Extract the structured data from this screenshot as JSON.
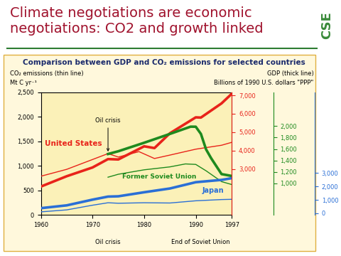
{
  "page": {
    "title": "Climate negotiations are economic negotiations: CO2 and growth linked",
    "logo": "CSE"
  },
  "chart_data": {
    "type": "line",
    "title": "Comparison between GDP and CO₂ emissions for selected countries",
    "y_label": "CO₂ emissions (thin line)",
    "y_unit": "Mt C yr⁻¹",
    "y2_label": "GDP (thick line)",
    "y2_unit": "Billions of 1990 U.S. dollars \"PPP\"",
    "xlim": [
      1960,
      1997
    ],
    "xticks": [
      1960,
      1970,
      1980,
      1990,
      1997
    ],
    "ylim": [
      0,
      2500
    ],
    "yticks": [
      0,
      500,
      {
        "value": 1000,
        "label": "1,000"
      },
      {
        "value": 1500,
        "label": "1,500"
      },
      {
        "value": 2000,
        "label": "2,000"
      },
      {
        "value": 2500,
        "label": "2,500"
      }
    ],
    "grid": false,
    "series": [
      {
        "name": "United States",
        "color": "#e8231a",
        "x": [
          1960,
          1965,
          1970,
          1973,
          1975,
          1979,
          1982,
          1985,
          1990,
          1995,
          1997
        ],
        "values": [
          790,
          930,
          1130,
          1250,
          1180,
          1290,
          1150,
          1220,
          1340,
          1420,
          1480
        ],
        "gdp_x": [
          1960,
          1965,
          1970,
          1973,
          1975,
          1980,
          1982,
          1985,
          1990,
          1991,
          1995,
          1997
        ],
        "gdp": [
          2046,
          2607,
          3082,
          3537,
          3517,
          4231,
          4135,
          4940,
          5803,
          5791,
          6562,
          7090
        ],
        "y2lim": [
          500,
          7170
        ],
        "y2ticks": [
          {
            "value": 3000,
            "label": "3,000"
          },
          {
            "value": 4000,
            "label": "4,000"
          },
          {
            "value": 5000,
            "label": "5,000"
          },
          {
            "value": 6000,
            "label": "6,000"
          },
          {
            "value": 7000,
            "label": "7,000"
          }
        ]
      },
      {
        "name": "Former Soviet Union",
        "color": "#1e8a1e",
        "x": [
          1973,
          1975,
          1980,
          1985,
          1988,
          1990,
          1992,
          1995,
          1997
        ],
        "values": [
          770,
          830,
          920,
          980,
          1040,
          1030,
          900,
          680,
          620
        ],
        "gdp_x": [
          1973,
          1975,
          1980,
          1985,
          1989,
          1990,
          1991,
          1992,
          1993,
          1995,
          1997
        ],
        "gdp": [
          1513,
          1561,
          1709,
          1863,
          1989,
          1988,
          1863,
          1593,
          1437,
          1163,
          1130
        ],
        "y2lim": [
          450,
          2590
        ],
        "y2ticks": [
          {
            "value": 1000,
            "label": "1,000"
          },
          {
            "value": 1200,
            "label": "1,200"
          },
          {
            "value": 1400,
            "label": "1,400"
          },
          {
            "value": 1600,
            "label": "1,600"
          },
          {
            "value": 1800,
            "label": "1,800"
          },
          {
            "value": 2000,
            "label": "2,000"
          }
        ]
      },
      {
        "name": "Japan",
        "color": "#2a6fd6",
        "x": [
          1960,
          1965,
          1970,
          1973,
          1975,
          1980,
          1985,
          1990,
          1995,
          1997
        ],
        "values": [
          65,
          105,
          200,
          250,
          240,
          250,
          245,
          290,
          315,
          320
        ],
        "gdp_x": [
          1960,
          1965,
          1970,
          1973,
          1975,
          1980,
          1985,
          1990,
          1995,
          1997
        ],
        "gdp": [
          376,
          586,
          1014,
          1243,
          1265,
          1568,
          1851,
          2321,
          2494,
          2624
        ],
        "y2lim": [
          -140,
          9070
        ],
        "y2ticks": [
          0,
          {
            "value": 1000,
            "label": "1,000"
          },
          {
            "value": 2000,
            "label": "2,000"
          },
          {
            "value": 3000,
            "label": "3,000"
          }
        ]
      }
    ],
    "annotations": [
      {
        "text": "Oil crisis",
        "x": 1973,
        "y": 1250
      },
      {
        "text": "Oil crisis",
        "x": 1973
      },
      {
        "text": "End of Soviet Union",
        "x": 1991
      }
    ]
  }
}
